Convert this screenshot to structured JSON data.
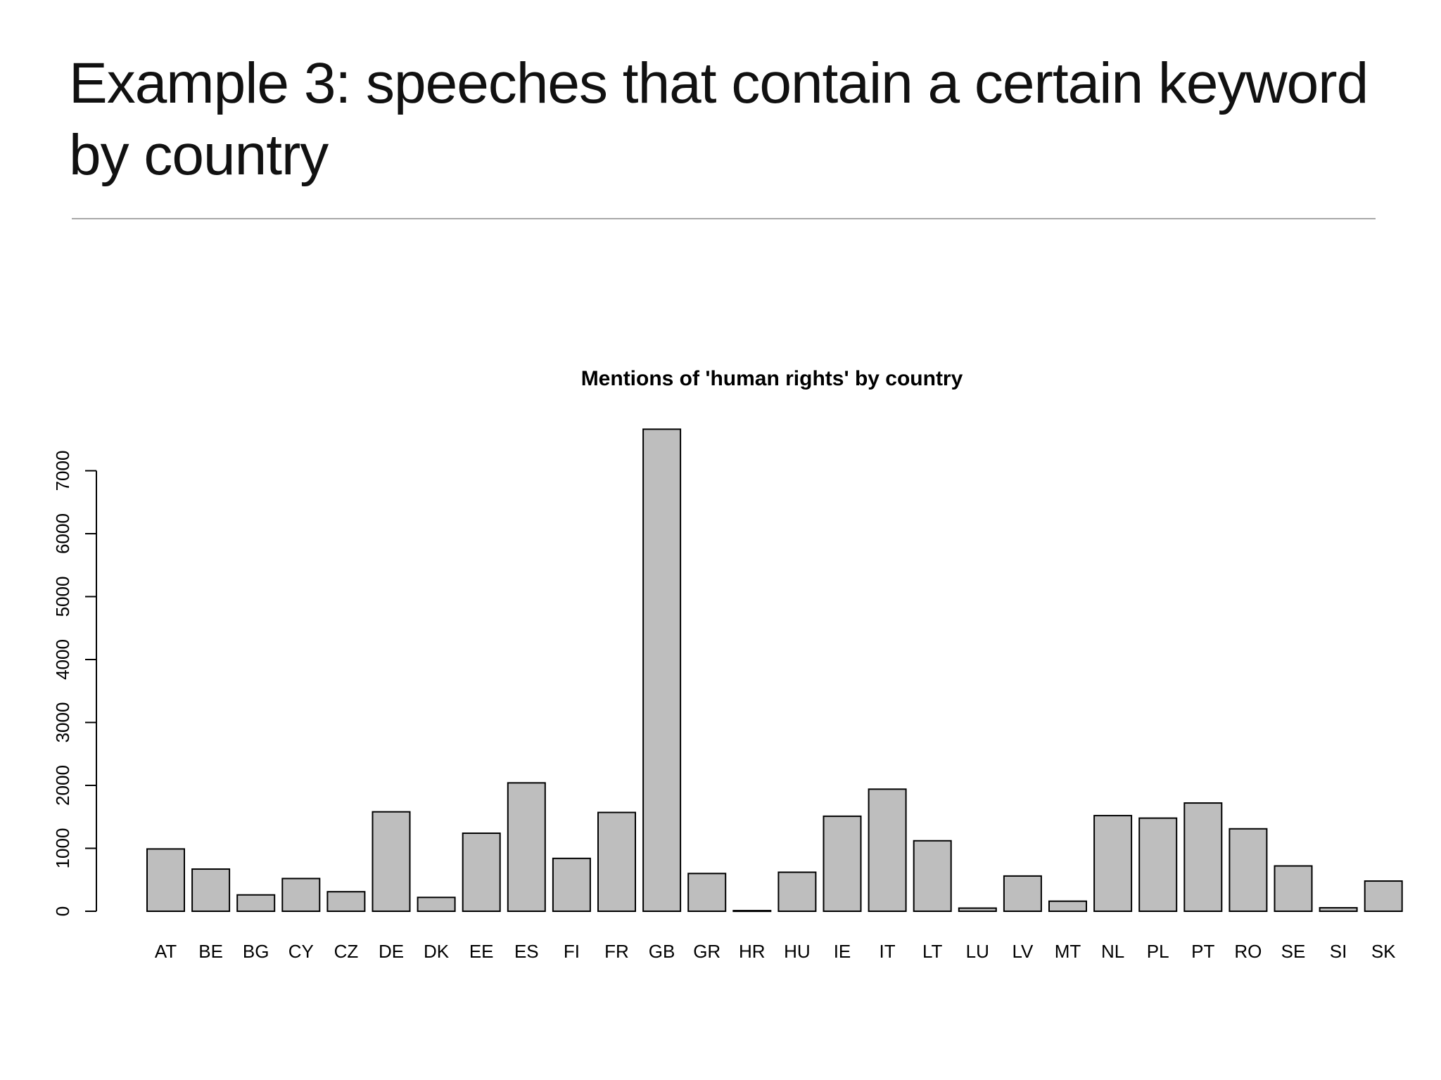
{
  "slide": {
    "title_line1": "Example 3: speeches that contain a certain keyword",
    "title_line2": "by country"
  },
  "chart_data": {
    "type": "bar",
    "title": "Mentions of 'human rights' by country",
    "xlabel": "",
    "ylabel": "",
    "categories": [
      "AT",
      "BE",
      "BG",
      "CY",
      "CZ",
      "DE",
      "DK",
      "EE",
      "ES",
      "FI",
      "FR",
      "GB",
      "GR",
      "HR",
      "HU",
      "IE",
      "IT",
      "LT",
      "LU",
      "LV",
      "MT",
      "NL",
      "PL",
      "PT",
      "RO",
      "SE",
      "SI",
      "SK"
    ],
    "values": [
      990,
      670,
      260,
      520,
      310,
      1580,
      220,
      1240,
      2040,
      840,
      1570,
      7660,
      600,
      10,
      620,
      1510,
      1940,
      1120,
      50,
      560,
      160,
      1520,
      1480,
      1720,
      1310,
      720,
      55,
      480
    ],
    "y_ticks": [
      0,
      1000,
      2000,
      3000,
      4000,
      5000,
      6000,
      7000
    ],
    "ylim": [
      0,
      7660
    ],
    "bar_color": "#bebebe",
    "edge_color": "#000000",
    "grid": false,
    "legend": "none"
  }
}
